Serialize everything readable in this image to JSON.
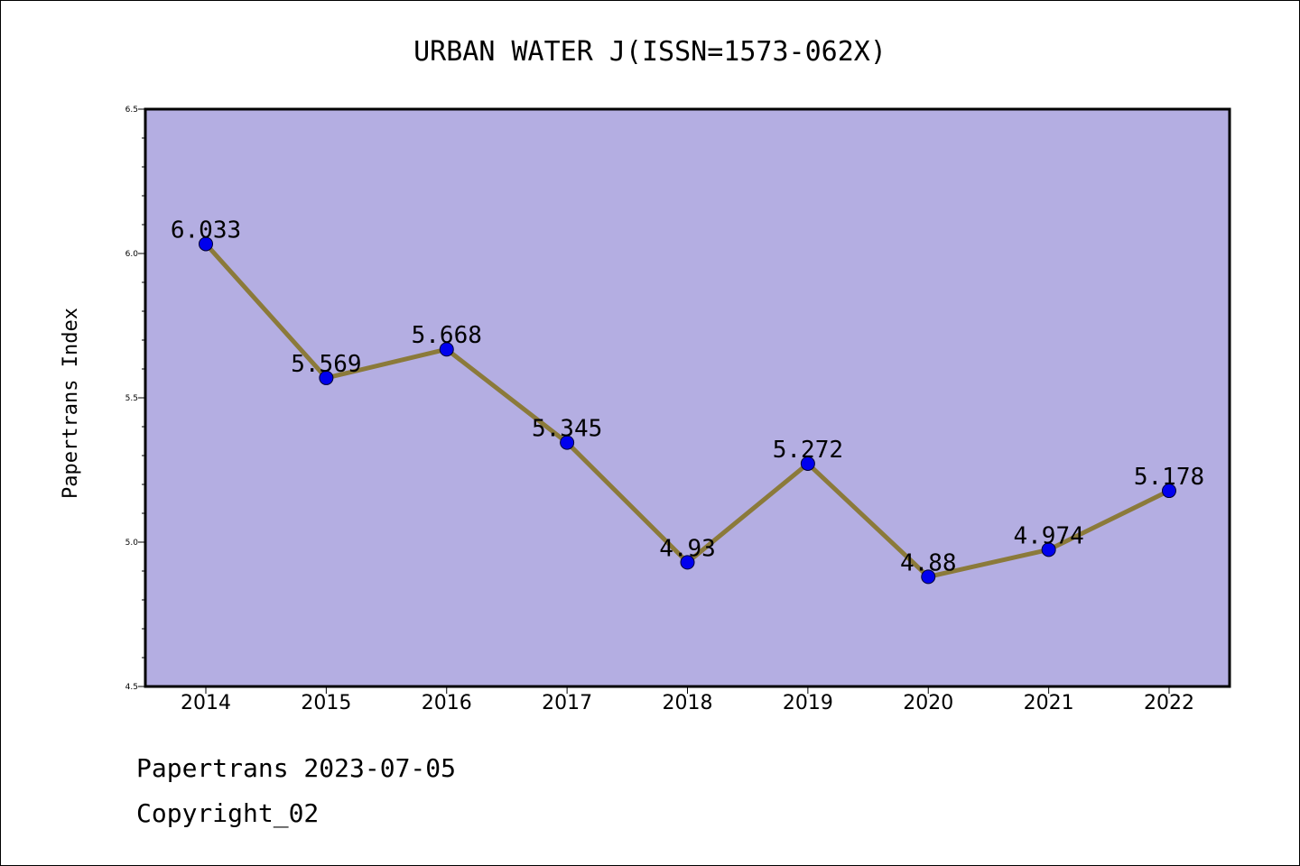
{
  "chart_data": {
    "type": "line",
    "title": "URBAN WATER J(ISSN=1573-062X)",
    "xlabel": "",
    "ylabel": "Papertrans Index",
    "categories": [
      "2014",
      "2015",
      "2016",
      "2017",
      "2018",
      "2019",
      "2020",
      "2021",
      "2022"
    ],
    "series": [
      {
        "values": [
          6.033,
          5.569,
          5.668,
          5.345,
          4.93,
          5.272,
          4.88,
          4.974,
          5.178
        ],
        "data_labels": [
          "6.033",
          "5.569",
          "5.668",
          "5.345",
          "4.93",
          "5.272",
          "4.88",
          "4.974",
          "5.178"
        ],
        "line_color": "#8b7a3a",
        "marker_color": "#0000ee"
      }
    ],
    "ylim": [
      4.5,
      6.5
    ],
    "yticks": [
      "4.5",
      "5.0",
      "5.5",
      "6.0",
      "6.5"
    ],
    "plot_background": "#b4aee2",
    "grid": false,
    "legend": "none"
  },
  "footer": {
    "line1": "Papertrans 2023-07-05",
    "line2": "Copyright_02"
  }
}
